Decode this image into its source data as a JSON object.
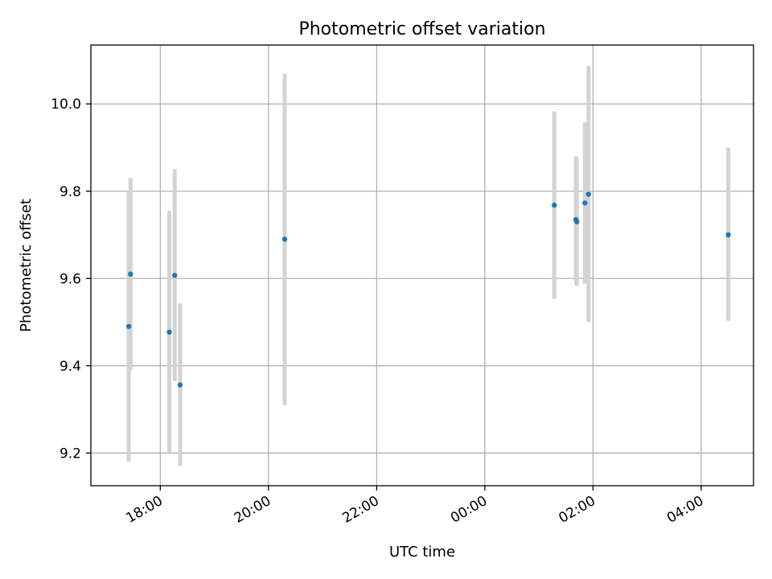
{
  "chart_data": {
    "type": "scatter",
    "title": "Photometric offset variation",
    "xlabel": "UTC time",
    "ylabel": "Photometric offset",
    "x_axis_kind": "time",
    "xlim": [
      "16:43",
      "04:58"
    ],
    "ylim": [
      9.125,
      10.135
    ],
    "x_ticks": [
      "18:00",
      "20:00",
      "22:00",
      "00:00",
      "02:00",
      "04:00"
    ],
    "y_ticks": [
      "9.2",
      "9.4",
      "9.6",
      "9.8",
      "10.0"
    ],
    "grid": true,
    "marker_color": "#1f77b4",
    "errorbar_color": "#d3d3d3",
    "points": [
      {
        "time": "17:25",
        "y": 9.49,
        "err_low": 9.18,
        "err_high": 9.8
      },
      {
        "time": "17:27",
        "y": 9.61,
        "err_low": 9.39,
        "err_high": 9.83
      },
      {
        "time": "18:10",
        "y": 9.477,
        "err_low": 9.2,
        "err_high": 9.755
      },
      {
        "time": "18:16",
        "y": 9.607,
        "err_low": 9.365,
        "err_high": 9.85
      },
      {
        "time": "18:22",
        "y": 9.356,
        "err_low": 9.17,
        "err_high": 9.543
      },
      {
        "time": "20:18",
        "y": 9.69,
        "err_low": 9.31,
        "err_high": 10.07
      },
      {
        "time": "01:17",
        "y": 9.768,
        "err_low": 9.553,
        "err_high": 9.983
      },
      {
        "time": "01:41",
        "y": 9.735,
        "err_low": 9.59,
        "err_high": 9.88
      },
      {
        "time": "01:42",
        "y": 9.73,
        "err_low": 9.583,
        "err_high": 9.877
      },
      {
        "time": "01:51",
        "y": 9.773,
        "err_low": 9.588,
        "err_high": 9.958
      },
      {
        "time": "01:55",
        "y": 9.793,
        "err_low": 9.5,
        "err_high": 10.087
      },
      {
        "time": "04:30",
        "y": 9.7,
        "err_low": 9.503,
        "err_high": 9.9
      }
    ]
  }
}
